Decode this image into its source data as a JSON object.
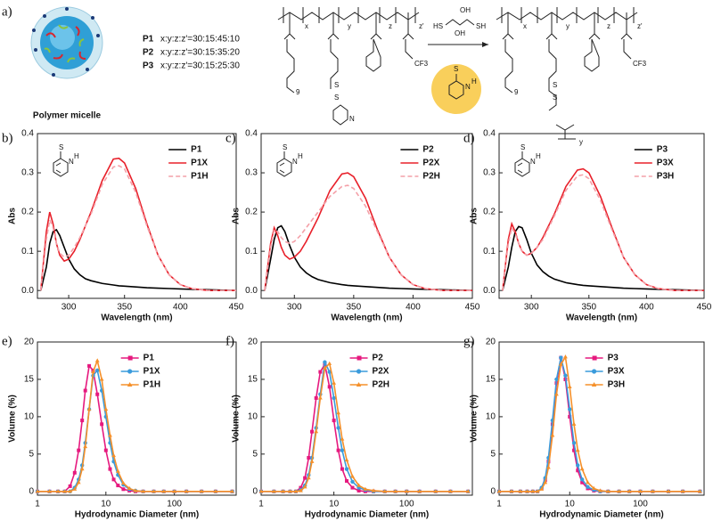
{
  "panel_a": {
    "label": "a)",
    "micelle_caption": "Polymer micelle",
    "compositions": [
      {
        "name": "P1",
        "ratio": "x:y:z:z'=30:15:45:10"
      },
      {
        "name": "P2",
        "ratio": "x:y:z:z'=30:15:35:20"
      },
      {
        "name": "P3",
        "ratio": "x:y:z:z'=30:15:25:30"
      }
    ],
    "left_structure_labels": [
      "x",
      "y",
      "z",
      "z'",
      "9",
      "CF3",
      "S",
      "S",
      "N"
    ],
    "right_structure_labels": [
      "x",
      "y",
      "z",
      "z'",
      "9",
      "CF3",
      "S",
      "S",
      "y"
    ],
    "reagent_labels": [
      "HS",
      "OH",
      "OH",
      "SH"
    ],
    "byproduct_labels": [
      "S",
      "N",
      "H"
    ]
  },
  "chart_data": [
    {
      "type": "line",
      "label": "b)",
      "xlabel": "Wavelength (nm)",
      "ylabel": "Abs",
      "xlim": [
        272,
        450
      ],
      "ylim": [
        -0.02,
        0.4
      ],
      "xticks": [
        300,
        350,
        400,
        450
      ],
      "yticks": [
        {
          "value": 0,
          "label": "0.0"
        },
        0.1,
        0.2,
        0.3,
        0.4
      ],
      "legend": "upper right",
      "annotations": [
        "S",
        "N",
        "H"
      ],
      "x": [
        275,
        280,
        283,
        286,
        289,
        292,
        296,
        300,
        305,
        310,
        315,
        320,
        330,
        340,
        345,
        350,
        360,
        370,
        380,
        390,
        400,
        410,
        425,
        450
      ],
      "series": [
        {
          "name": "P1",
          "color": "#000000",
          "values": [
            0,
            0.06,
            0.12,
            0.15,
            0.155,
            0.14,
            0.11,
            0.08,
            0.055,
            0.04,
            0.03,
            0.025,
            0.018,
            0.014,
            0.012,
            0.011,
            0.009,
            0.007,
            0.006,
            0.005,
            0.004,
            0.003,
            0.002,
            0
          ]
        },
        {
          "name": "P1X",
          "color": "#e8202a",
          "values": [
            0,
            0.15,
            0.2,
            0.17,
            0.12,
            0.09,
            0.075,
            0.08,
            0.1,
            0.13,
            0.165,
            0.2,
            0.28,
            0.335,
            0.337,
            0.325,
            0.26,
            0.17,
            0.09,
            0.04,
            0.015,
            0.005,
            0,
            0
          ]
        },
        {
          "name": "P1H",
          "color": "#f4a0a8",
          "dash": true,
          "values": [
            0,
            0.13,
            0.18,
            0.16,
            0.12,
            0.095,
            0.085,
            0.09,
            0.11,
            0.135,
            0.165,
            0.195,
            0.27,
            0.315,
            0.318,
            0.31,
            0.25,
            0.165,
            0.09,
            0.04,
            0.015,
            0.005,
            0,
            0
          ]
        }
      ]
    },
    {
      "type": "line",
      "label": "c)",
      "xlabel": "Wavelength (nm)",
      "ylabel": "Abs",
      "xlim": [
        272,
        450
      ],
      "ylim": [
        -0.02,
        0.4
      ],
      "xticks": [
        300,
        350,
        400,
        450
      ],
      "yticks": [
        {
          "value": 0,
          "label": "0.0"
        },
        0.1,
        0.2,
        0.3,
        0.4
      ],
      "legend": "upper right",
      "annotations": [
        "S",
        "N",
        "H"
      ],
      "x": [
        275,
        280,
        283,
        286,
        289,
        292,
        296,
        300,
        305,
        310,
        315,
        320,
        330,
        340,
        345,
        350,
        360,
        370,
        380,
        390,
        400,
        410,
        425,
        450
      ],
      "series": [
        {
          "name": "P2",
          "color": "#000000",
          "values": [
            0,
            0.08,
            0.13,
            0.16,
            0.165,
            0.15,
            0.115,
            0.085,
            0.06,
            0.045,
            0.035,
            0.028,
            0.02,
            0.015,
            0.013,
            0.012,
            0.01,
            0.008,
            0.006,
            0.005,
            0.004,
            0.003,
            0.002,
            0
          ]
        },
        {
          "name": "P2X",
          "color": "#e8202a",
          "values": [
            0,
            0.12,
            0.16,
            0.14,
            0.11,
            0.09,
            0.08,
            0.085,
            0.1,
            0.125,
            0.155,
            0.185,
            0.255,
            0.297,
            0.3,
            0.29,
            0.235,
            0.155,
            0.085,
            0.04,
            0.015,
            0.005,
            0,
            0
          ]
        },
        {
          "name": "P2H",
          "color": "#f4a0a8",
          "dash": true,
          "values": [
            0,
            0.11,
            0.155,
            0.15,
            0.135,
            0.125,
            0.12,
            0.125,
            0.14,
            0.16,
            0.18,
            0.2,
            0.24,
            0.265,
            0.268,
            0.26,
            0.215,
            0.15,
            0.085,
            0.04,
            0.015,
            0.005,
            0,
            0
          ]
        }
      ]
    },
    {
      "type": "line",
      "label": "d)",
      "xlabel": "Wavelength (nm)",
      "ylabel": "Abs",
      "xlim": [
        272,
        450
      ],
      "ylim": [
        -0.02,
        0.4
      ],
      "xticks": [
        300,
        350,
        400,
        450
      ],
      "yticks": [
        {
          "value": 0,
          "label": "0.0"
        },
        0.1,
        0.2,
        0.3,
        0.4
      ],
      "legend": "upper right",
      "annotations": [
        "S",
        "N",
        "H"
      ],
      "x": [
        275,
        280,
        283,
        286,
        289,
        292,
        296,
        300,
        305,
        310,
        315,
        320,
        330,
        340,
        345,
        350,
        360,
        370,
        380,
        390,
        400,
        410,
        425,
        450
      ],
      "series": [
        {
          "name": "P3",
          "color": "#000000",
          "values": [
            0,
            0.06,
            0.11,
            0.15,
            0.163,
            0.16,
            0.13,
            0.095,
            0.065,
            0.048,
            0.037,
            0.029,
            0.02,
            0.015,
            0.013,
            0.012,
            0.01,
            0.008,
            0.006,
            0.005,
            0.004,
            0.003,
            0.002,
            0
          ]
        },
        {
          "name": "P3X",
          "color": "#e8202a",
          "values": [
            0,
            0.13,
            0.17,
            0.15,
            0.12,
            0.1,
            0.09,
            0.095,
            0.11,
            0.135,
            0.165,
            0.195,
            0.265,
            0.307,
            0.31,
            0.3,
            0.24,
            0.16,
            0.085,
            0.04,
            0.015,
            0.005,
            0,
            0
          ]
        },
        {
          "name": "P3H",
          "color": "#f4a0a8",
          "dash": true,
          "values": [
            0,
            0.12,
            0.16,
            0.145,
            0.12,
            0.1,
            0.09,
            0.095,
            0.11,
            0.13,
            0.16,
            0.19,
            0.255,
            0.292,
            0.295,
            0.285,
            0.23,
            0.155,
            0.085,
            0.04,
            0.015,
            0.005,
            0,
            0
          ]
        }
      ]
    },
    {
      "type": "line",
      "label": "e)",
      "xlabel": "Hydrodynamic Diameter (nm)",
      "ylabel": "Volume (%)",
      "xscale": "log",
      "xlim": [
        1,
        800
      ],
      "ylim": [
        -0.5,
        20
      ],
      "xticks": [
        1,
        10,
        100
      ],
      "yticks": [
        0,
        5,
        10,
        15,
        20
      ],
      "legend": "upper center",
      "x": [
        1,
        1.5,
        2,
        2.5,
        3,
        3.5,
        4,
        4.5,
        5,
        5.7,
        6.5,
        7.5,
        8.7,
        10,
        11.5,
        13,
        15,
        18,
        22,
        27,
        35,
        50,
        70,
        100,
        150,
        250,
        400,
        700
      ],
      "series": [
        {
          "name": "P1",
          "color": "#e6197e",
          "marker": "square",
          "values": [
            0,
            0,
            0,
            0,
            0.7,
            2.5,
            5.5,
            9.5,
            13.5,
            16.8,
            16.2,
            13,
            9,
            5.5,
            3,
            1.6,
            0.8,
            0.3,
            0.1,
            0,
            0,
            0,
            0,
            0,
            0,
            0,
            0,
            0
          ]
        },
        {
          "name": "P1X",
          "color": "#3a9bdc",
          "marker": "circle",
          "values": [
            0,
            0,
            0,
            0,
            0,
            0.5,
            1.6,
            3.5,
            6.5,
            11,
            15.5,
            16.2,
            13.5,
            10,
            6.5,
            4,
            2.2,
            0.9,
            0.3,
            0.1,
            0,
            0,
            0,
            0,
            0,
            0,
            0,
            0
          ]
        },
        {
          "name": "P1H",
          "color": "#f5902a",
          "marker": "triangle",
          "values": [
            0,
            0,
            0,
            0,
            0,
            0.3,
            1.2,
            3,
            6,
            11,
            16,
            17.5,
            15,
            11,
            7.5,
            4.8,
            2.7,
            1.1,
            0.4,
            0.1,
            0,
            0,
            0,
            0,
            0,
            0,
            0,
            0
          ]
        }
      ]
    },
    {
      "type": "line",
      "label": "f)",
      "xlabel": "Hydrodynamic Diameter (nm)",
      "ylabel": "Volume (%)",
      "xscale": "log",
      "xlim": [
        1,
        800
      ],
      "ylim": [
        -0.5,
        20
      ],
      "xticks": [
        1,
        10,
        100
      ],
      "yticks": [
        0,
        5,
        10,
        15,
        20
      ],
      "legend": "upper center",
      "x": [
        1,
        1.5,
        2,
        2.5,
        3,
        3.5,
        4,
        4.5,
        5,
        5.7,
        6.5,
        7.5,
        8.7,
        10,
        11.5,
        13,
        15,
        18,
        22,
        27,
        35,
        50,
        70,
        100,
        150,
        250,
        400,
        700
      ],
      "series": [
        {
          "name": "P2",
          "color": "#e6197e",
          "marker": "square",
          "values": [
            0,
            0,
            0,
            0,
            0,
            0.5,
            1.8,
            4.5,
            8,
            12.5,
            16,
            17,
            14,
            9.5,
            5.5,
            3,
            1.4,
            0.5,
            0.1,
            0,
            0,
            0,
            0,
            0,
            0,
            0,
            0,
            0
          ]
        },
        {
          "name": "P2X",
          "color": "#3a9bdc",
          "marker": "circle",
          "values": [
            0,
            0,
            0,
            0,
            0,
            0.2,
            0.8,
            2.2,
            4.5,
            8.5,
            13,
            17.3,
            16,
            12.5,
            8.5,
            5.5,
            3,
            1.3,
            0.5,
            0.2,
            0,
            0,
            0,
            0,
            0,
            0,
            0,
            0
          ]
        },
        {
          "name": "P2H",
          "color": "#f5902a",
          "marker": "triangle",
          "values": [
            0,
            0,
            0,
            0,
            0,
            0.1,
            0.6,
            1.8,
            4,
            8,
            12.5,
            16.5,
            17.1,
            14.5,
            10.5,
            7,
            4.2,
            2,
            0.8,
            0.3,
            0.1,
            0,
            0,
            0,
            0,
            0,
            0,
            0
          ]
        }
      ]
    },
    {
      "type": "line",
      "label": "g)",
      "xlabel": "Hydrodynamic Diameter (nm)",
      "ylabel": "Volume (%)",
      "xscale": "log",
      "xlim": [
        1,
        800
      ],
      "ylim": [
        -0.5,
        20
      ],
      "xticks": [
        1,
        10,
        100
      ],
      "yticks": [
        0,
        5,
        10,
        15,
        20
      ],
      "legend": "upper center",
      "x": [
        1,
        1.5,
        2,
        2.5,
        3,
        3.5,
        4,
        4.5,
        5,
        5.7,
        6.5,
        7.5,
        8.7,
        10,
        11.5,
        13,
        15,
        18,
        22,
        27,
        35,
        50,
        70,
        100,
        150,
        250,
        400,
        700
      ],
      "series": [
        {
          "name": "P3",
          "color": "#e6197e",
          "marker": "square",
          "values": [
            0,
            0,
            0,
            0,
            0,
            0,
            0.4,
            1.5,
            4,
            9,
            14.5,
            17.9,
            15,
            10,
            5.5,
            2.8,
            1.2,
            0.4,
            0.1,
            0,
            0,
            0,
            0,
            0,
            0,
            0,
            0,
            0
          ]
        },
        {
          "name": "P3X",
          "color": "#3a9bdc",
          "marker": "circle",
          "values": [
            0,
            0,
            0,
            0,
            0,
            0,
            0.5,
            1.8,
            4.5,
            9.5,
            15,
            17.9,
            15.5,
            11,
            6.5,
            3.5,
            1.6,
            0.6,
            0.2,
            0,
            0,
            0,
            0,
            0,
            0,
            0,
            0,
            0
          ]
        },
        {
          "name": "P3H",
          "color": "#f5902a",
          "marker": "triangle",
          "values": [
            0,
            0,
            0,
            0,
            0,
            0,
            0.3,
            1.2,
            3.2,
            7.5,
            13,
            17,
            18,
            14,
            9,
            5.5,
            3,
            1.2,
            0.4,
            0.1,
            0,
            0,
            0,
            0,
            0,
            0,
            0,
            0
          ]
        }
      ]
    }
  ]
}
